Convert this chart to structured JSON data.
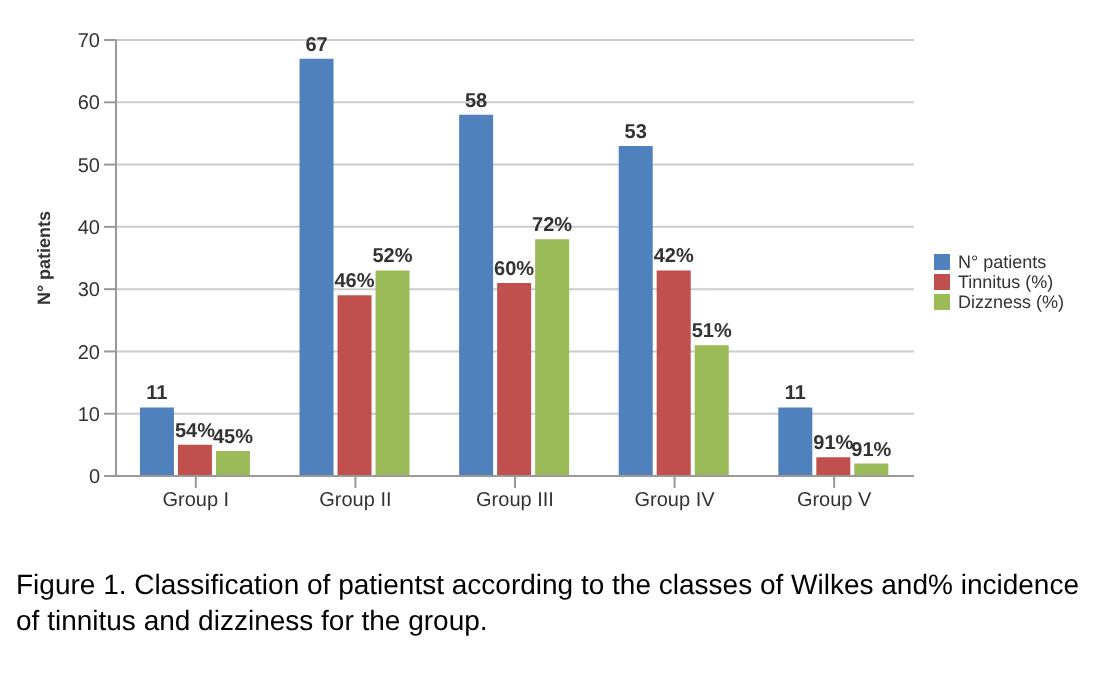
{
  "chart_data": {
    "type": "bar",
    "ylabel": "N° patients",
    "categories": [
      "Group I",
      "Group II",
      "Group III",
      "Group IV",
      "Group V"
    ],
    "series": [
      {
        "name": "N° patients",
        "color": "#4f81bd",
        "values": [
          11,
          67,
          58,
          53,
          11
        ],
        "value_labels": [
          "11",
          "67",
          "58",
          "53",
          "11"
        ]
      },
      {
        "name": "Tinnitus (%)",
        "color": "#c0504d",
        "values": [
          5,
          29,
          31,
          33,
          3
        ]
      },
      {
        "name": "Dizzness (%)",
        "color": "#9bbb59",
        "values": [
          4,
          33,
          38,
          21,
          2
        ]
      }
    ],
    "ylim": [
      0,
      70
    ],
    "yticks": [
      0,
      10,
      20,
      30,
      40,
      50,
      60,
      70
    ],
    "grid": "y",
    "legend": "right",
    "annotations": [
      "54%",
      "46%",
      "60%",
      "42%",
      "91%",
      "45%",
      "52%",
      "72%",
      "51%",
      "91%",
      "Figure 1. Classification of patientst according to the classes of Wilkes and% incidence of tinnitus and dizziness for the group."
    ]
  }
}
